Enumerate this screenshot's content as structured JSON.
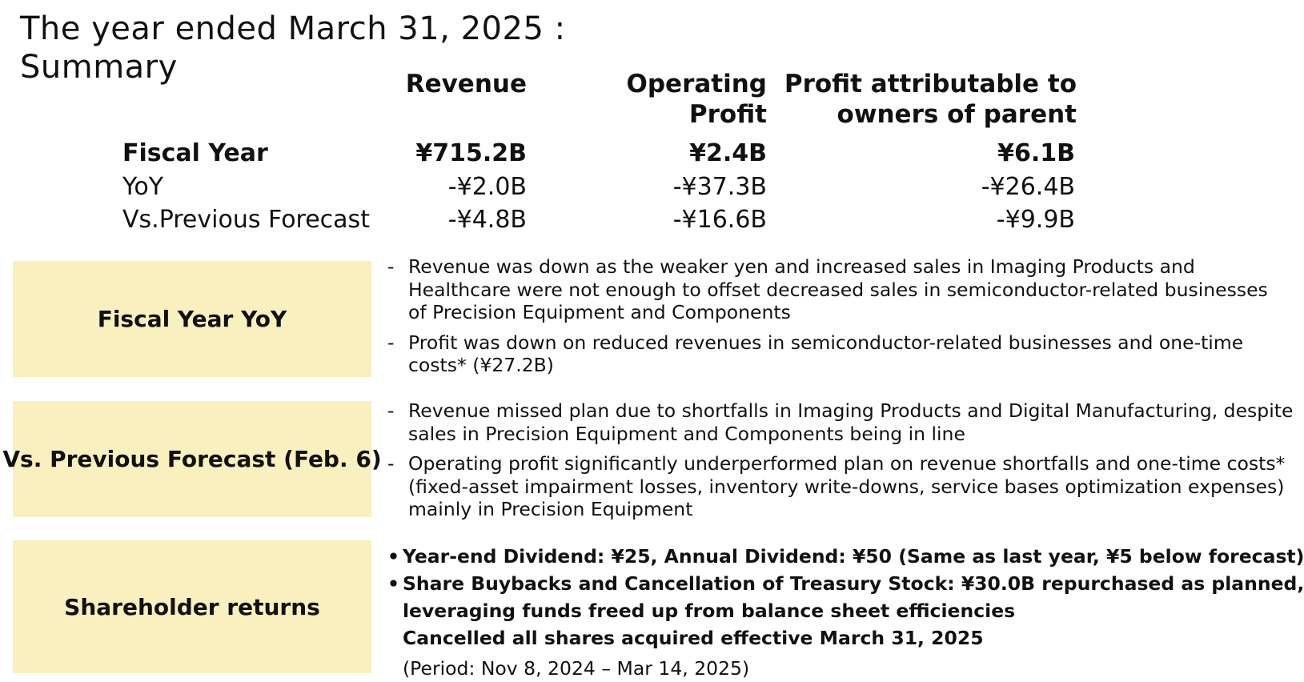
{
  "title": {
    "line1": "The year ended March 31, 2025 :",
    "line2": "Summary"
  },
  "table": {
    "headers": {
      "revenue": "Revenue",
      "operating_profit": [
        "Operating",
        "Profit"
      ],
      "profit_attributable": [
        "Profit attributable to",
        "owners of parent"
      ]
    },
    "rows": [
      {
        "label": "Fiscal Year",
        "revenue": "¥715.2B",
        "operating_profit": "¥2.4B",
        "profit_attributable": "¥6.1B"
      },
      {
        "label": "YoY",
        "revenue": "-¥2.0B",
        "operating_profit": "-¥37.3B",
        "profit_attributable": "-¥26.4B"
      },
      {
        "label": "Vs.Previous Forecast",
        "revenue": "-¥4.8B",
        "operating_profit": "-¥16.6B",
        "profit_attributable": "-¥9.9B"
      }
    ]
  },
  "sections": [
    {
      "label": "Fiscal Year YoY",
      "marker": "-",
      "notes": [
        [
          "Revenue was down as the weaker yen and increased sales in Imaging Products and",
          "Healthcare were not enough to offset decreased sales in semiconductor-related businesses",
          "of Precision Equipment and Components"
        ],
        [
          "Profit was down on reduced revenues in semiconductor-related businesses and one-time",
          "costs* (¥27.2B)"
        ]
      ]
    },
    {
      "label": "Vs. Previous Forecast (Feb. 6)",
      "marker": "-",
      "notes": [
        [
          "Revenue missed plan due to shortfalls in Imaging Products and Digital Manufacturing, despite",
          "sales in Precision Equipment and Components being in line"
        ],
        [
          "Operating profit significantly underperformed plan on revenue shortfalls and one-time costs*",
          "(fixed-asset impairment losses, inventory write-downs, service bases optimization expenses)",
          "mainly in Precision Equipment"
        ]
      ]
    },
    {
      "label": "Shareholder returns",
      "marker": "•",
      "bullets": [
        [
          "Year-end Dividend: ¥25, Annual Dividend: ¥50 (Same as last year, ¥5 below forecast)"
        ],
        [
          "Share Buybacks and Cancellation of Treasury Stock: ¥30.0B repurchased as planned,",
          "leveraging funds freed up from balance sheet efficiencies"
        ]
      ],
      "extra": "Cancelled all shares acquired effective March 31, 2025",
      "period": "(Period: Nov 8, 2024 – Mar 14, 2025)"
    }
  ]
}
